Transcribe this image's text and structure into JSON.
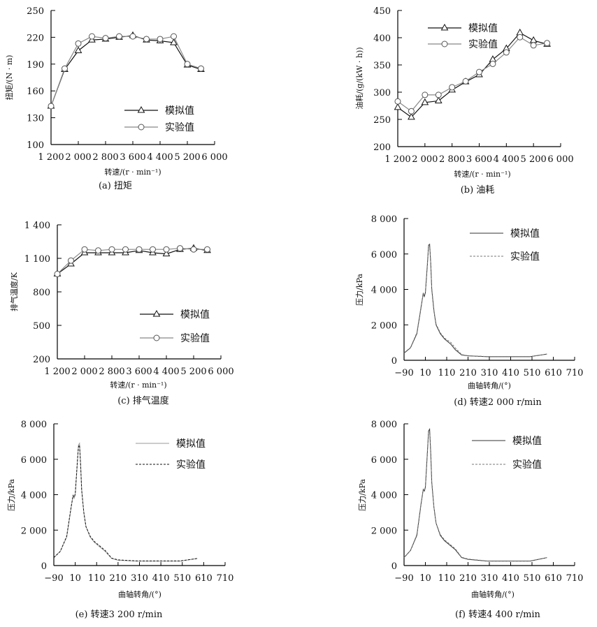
{
  "chart_data": [
    {
      "id": "a",
      "type": "line",
      "title": "(a) 扭矩",
      "xlabel": "转速/(r · min⁻¹)",
      "ylabel": "扭矩/(N · m)",
      "xlim": [
        1200,
        6000
      ],
      "ylim": [
        100,
        250
      ],
      "xticks": [
        1200,
        2000,
        2800,
        3600,
        4400,
        5200,
        6000
      ],
      "xtick_labels": [
        "1 200",
        "2 000",
        "2 800",
        "3 600",
        "4 400",
        "5 200",
        "6 000"
      ],
      "yticks": [
        100,
        130,
        160,
        190,
        220,
        250
      ],
      "ytick_labels": [
        "100",
        "130",
        "160",
        "190",
        "220",
        "250"
      ],
      "x": [
        1200,
        1600,
        2000,
        2400,
        2800,
        3200,
        3600,
        4000,
        4400,
        4800,
        5200,
        5600
      ],
      "series": [
        {
          "name": "模拟值",
          "marker": "triangle",
          "values": [
            143,
            184,
            205,
            217,
            218,
            220,
            222,
            217,
            216,
            214,
            189,
            184
          ]
        },
        {
          "name": "实验值",
          "marker": "circle",
          "values": [
            143,
            185,
            213,
            221,
            219,
            221,
            221,
            218,
            218,
            221,
            190,
            185
          ]
        }
      ],
      "legend": "center-right"
    },
    {
      "id": "b",
      "type": "line",
      "title": "(b) 油耗",
      "xlabel": "转速/(r · min⁻¹)",
      "ylabel": "油耗/(g/(kW · h))",
      "xlim": [
        1200,
        6000
      ],
      "ylim": [
        200,
        450
      ],
      "xticks": [
        1200,
        2000,
        2800,
        3600,
        4400,
        5200,
        6000
      ],
      "xtick_labels": [
        "1 200",
        "2 000",
        "2 800",
        "3 600",
        "4 400",
        "5 200",
        "6 000"
      ],
      "yticks": [
        200,
        250,
        300,
        350,
        400,
        450
      ],
      "ytick_labels": [
        "200",
        "250",
        "300",
        "350",
        "400",
        "450"
      ],
      "x": [
        1200,
        1600,
        2000,
        2400,
        2800,
        3200,
        3600,
        4000,
        4400,
        4800,
        5200,
        5600
      ],
      "series": [
        {
          "name": "模拟值",
          "marker": "triangle",
          "values": [
            272,
            254,
            281,
            284,
            304,
            319,
            332,
            360,
            380,
            409,
            395,
            388
          ]
        },
        {
          "name": "实验值",
          "marker": "circle",
          "values": [
            283,
            265,
            295,
            295,
            309,
            320,
            337,
            352,
            373,
            401,
            386,
            390
          ]
        }
      ],
      "legend": "top-left"
    },
    {
      "id": "c",
      "type": "line",
      "title": "(c) 排气温度",
      "xlabel": "转速/(r · min⁻¹)",
      "ylabel": "排气温度/K",
      "xlim": [
        1200,
        6000
      ],
      "ylim": [
        200,
        1400
      ],
      "xticks": [
        1200,
        2000,
        2800,
        3600,
        4400,
        5200,
        6000
      ],
      "xtick_labels": [
        "1 200",
        "2 000",
        "2 800",
        "3 600",
        "4 400",
        "5 200",
        "6 000"
      ],
      "yticks": [
        200,
        500,
        800,
        1100,
        1400
      ],
      "ytick_labels": [
        "200",
        "500",
        "800",
        "1 100",
        "1 400"
      ],
      "x": [
        1200,
        1600,
        2000,
        2400,
        2800,
        3200,
        3600,
        4000,
        4400,
        4800,
        5200,
        5600
      ],
      "series": [
        {
          "name": "模拟值",
          "marker": "triangle",
          "values": [
            960,
            1050,
            1150,
            1150,
            1150,
            1150,
            1170,
            1150,
            1140,
            1180,
            1190,
            1170
          ]
        },
        {
          "name": "实验值",
          "marker": "circle",
          "values": [
            960,
            1080,
            1180,
            1170,
            1180,
            1180,
            1180,
            1180,
            1180,
            1190,
            1180,
            1180
          ]
        }
      ],
      "legend": "center-right"
    },
    {
      "id": "d",
      "type": "line",
      "title": "(d) 转速2 000 r/min",
      "xlabel": "曲轴转角/(°)",
      "ylabel": "压力/kPa",
      "xlim": [
        -90,
        710
      ],
      "ylim": [
        0,
        8000
      ],
      "xticks": [
        -90,
        10,
        110,
        210,
        310,
        410,
        510,
        610,
        710
      ],
      "xtick_labels": [
        "−90",
        "10",
        "110",
        "210",
        "310",
        "410",
        "510",
        "610",
        "710"
      ],
      "yticks": [
        0,
        2000,
        4000,
        6000,
        8000
      ],
      "ytick_labels": [
        "0",
        "2 000",
        "4 000",
        "6 000",
        "8 000"
      ],
      "x": [
        -90,
        -60,
        -30,
        -10,
        0,
        5,
        10,
        20,
        25,
        30,
        35,
        40,
        50,
        60,
        80,
        100,
        130,
        150,
        180,
        210,
        300,
        400,
        500,
        580
      ],
      "series": [
        {
          "name": "模拟值",
          "style": "solid",
          "values": [
            400,
            700,
            1500,
            3000,
            3800,
            3600,
            3800,
            5500,
            6500,
            6550,
            5500,
            4000,
            2800,
            2000,
            1500,
            1200,
            900,
            600,
            300,
            250,
            200,
            200,
            200,
            350
          ]
        },
        {
          "name": "实验值",
          "style": "dashed",
          "values": [
            420,
            720,
            1550,
            3050,
            3750,
            3650,
            3850,
            5600,
            6450,
            6500,
            5450,
            4050,
            2850,
            2050,
            1550,
            1250,
            1000,
            700,
            320,
            260,
            210,
            210,
            210,
            350
          ]
        }
      ],
      "legend": "top-right"
    },
    {
      "id": "e",
      "type": "line",
      "title": "(e) 转速3 200 r/min",
      "xlabel": "曲轴转角/(°)",
      "ylabel": "压力/kPa",
      "xlim": [
        -90,
        710
      ],
      "ylim": [
        0,
        8000
      ],
      "xticks": [
        -90,
        10,
        110,
        210,
        310,
        410,
        510,
        610,
        710
      ],
      "xtick_labels": [
        "−90",
        "10",
        "110",
        "210",
        "310",
        "410",
        "510",
        "610",
        "710"
      ],
      "yticks": [
        0,
        2000,
        4000,
        6000,
        8000
      ],
      "ytick_labels": [
        "0",
        "2 000",
        "4 000",
        "6 000",
        "8 000"
      ],
      "x": [
        -90,
        -60,
        -30,
        -10,
        0,
        5,
        10,
        20,
        25,
        30,
        35,
        40,
        50,
        60,
        80,
        100,
        130,
        150,
        180,
        210,
        300,
        400,
        500,
        580
      ],
      "series": [
        {
          "name": "模拟值",
          "style": "solid",
          "values": [
            450,
            800,
            1600,
            3200,
            4000,
            3800,
            4000,
            5800,
            6800,
            6900,
            5800,
            4300,
            3000,
            2200,
            1600,
            1300,
            1000,
            800,
            400,
            300,
            250,
            250,
            250,
            400
          ]
        },
        {
          "name": "实验值",
          "style": "dashed",
          "values": [
            450,
            800,
            1650,
            3250,
            3950,
            3850,
            4050,
            5900,
            6700,
            6800,
            5700,
            4250,
            3000,
            2200,
            1650,
            1350,
            1050,
            850,
            420,
            320,
            260,
            260,
            260,
            400
          ]
        }
      ],
      "legend": "top-right"
    },
    {
      "id": "f",
      "type": "line",
      "title": "(f) 转速4 400 r/min",
      "xlabel": "曲轴转角/(°)",
      "ylabel": "压力/kPa",
      "xlim": [
        -90,
        710
      ],
      "ylim": [
        0,
        8000
      ],
      "xticks": [
        -90,
        10,
        110,
        210,
        310,
        410,
        510,
        610,
        710
      ],
      "xtick_labels": [
        "−90",
        "10",
        "110",
        "210",
        "310",
        "410",
        "510",
        "610",
        "710"
      ],
      "yticks": [
        0,
        2000,
        4000,
        6000,
        8000
      ],
      "ytick_labels": [
        "0",
        "2 000",
        "4 000",
        "6 000",
        "8 000"
      ],
      "x": [
        -90,
        -60,
        -30,
        -10,
        0,
        5,
        10,
        20,
        25,
        30,
        35,
        40,
        50,
        60,
        80,
        100,
        130,
        150,
        180,
        210,
        300,
        400,
        500,
        580
      ],
      "series": [
        {
          "name": "模拟值",
          "style": "solid",
          "values": [
            450,
            850,
            1700,
            3500,
            4300,
            4200,
            4400,
            6500,
            7600,
            7700,
            6400,
            4700,
            3300,
            2400,
            1700,
            1400,
            1100,
            900,
            450,
            350,
            250,
            250,
            250,
            450
          ]
        },
        {
          "name": "实验值",
          "style": "dashed",
          "values": [
            450,
            850,
            1750,
            3550,
            4250,
            4250,
            4450,
            6600,
            7500,
            7600,
            6300,
            4650,
            3300,
            2400,
            1750,
            1450,
            1150,
            950,
            470,
            370,
            260,
            260,
            260,
            450
          ]
        }
      ],
      "legend": "top-right"
    }
  ]
}
